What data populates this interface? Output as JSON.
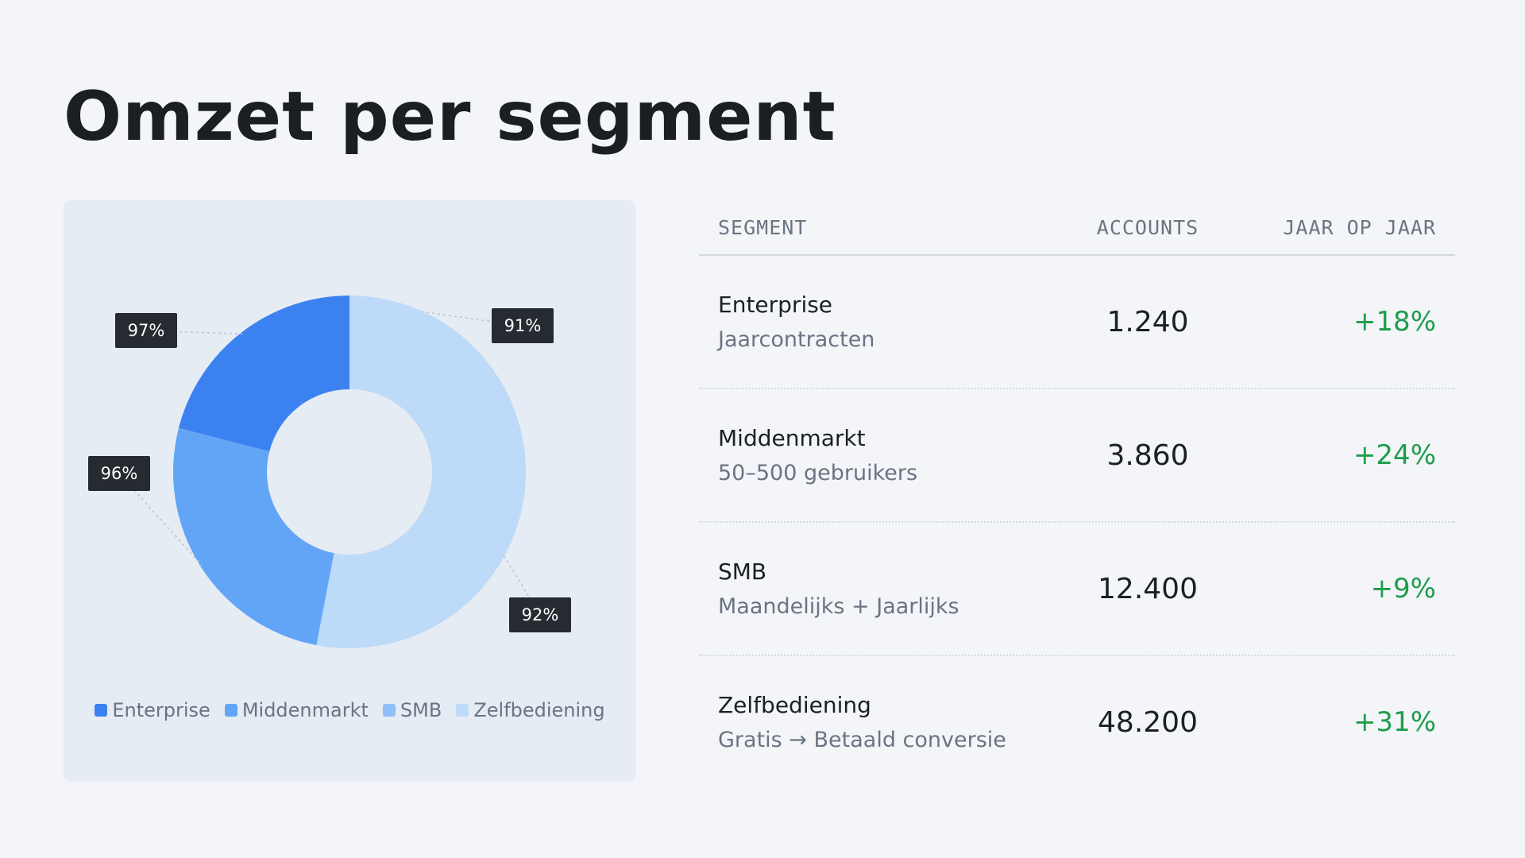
{
  "page": {
    "title": "Omzet per segment"
  },
  "colors": {
    "enterprise": "#3b82f0",
    "middenmarkt": "#62a5f6",
    "smb": "#8fbff8",
    "zelfbediening": "#bedaf9",
    "positive": "#1f9d4c"
  },
  "chart_data": {
    "type": "pie",
    "variant": "donut",
    "title": "",
    "categories": [
      "Enterprise",
      "Middenmarkt",
      "SMB",
      "Zelfbediening"
    ],
    "values": [
      21,
      26,
      0,
      53
    ],
    "slice_colors": [
      "#3b82f0",
      "#62a5f6",
      "#8fbff8",
      "#bedaf9"
    ],
    "data_labels": [
      {
        "text": "97%",
        "slice": "Enterprise"
      },
      {
        "text": "96%",
        "slice": "Middenmarkt"
      },
      {
        "text": "92%",
        "slice": "Zelfbediening"
      },
      {
        "text": "91%",
        "slice": "Zelfbediening"
      }
    ],
    "legend_position": "bottom"
  },
  "table": {
    "headers": {
      "segment": "SEGMENT",
      "accounts": "ACCOUNTS",
      "yoy": "JAAR OP JAAR"
    },
    "rows": [
      {
        "name": "Enterprise",
        "sub": "Jaarcontracten",
        "accounts": "1.240",
        "yoy": "+18%"
      },
      {
        "name": "Middenmarkt",
        "sub": "50–500 gebruikers",
        "accounts": "3.860",
        "yoy": "+24%"
      },
      {
        "name": "SMB",
        "sub": "Maandelijks + Jaarlijks",
        "accounts": "12.400",
        "yoy": "+9%"
      },
      {
        "name": "Zelfbediening",
        "sub": "Gratis → Betaald conversie",
        "accounts": "48.200",
        "yoy": "+31%"
      }
    ]
  }
}
